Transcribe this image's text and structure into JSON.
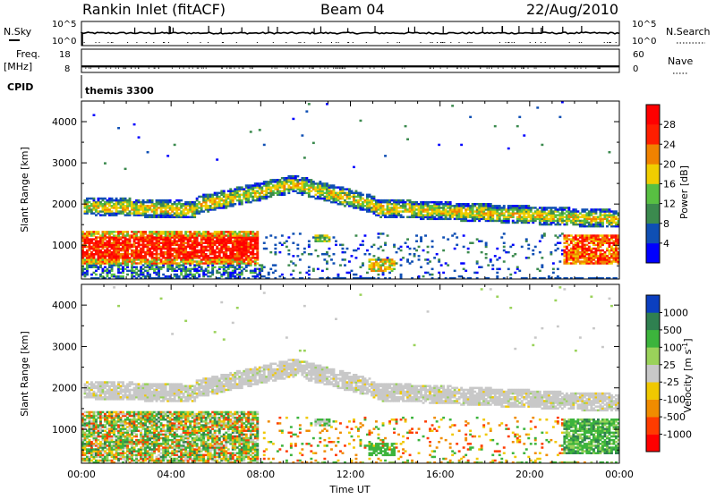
{
  "header": {
    "station": "Rankin Inlet (fitACF)",
    "beam": "Beam 04",
    "date": "22/Aug/2010"
  },
  "side_labels": {
    "nsky": "N.Sky",
    "freq": "Freq.",
    "mhz": "[MHz]",
    "cpid": "CPID",
    "nsearch": "N.Search",
    "nave": "Nave"
  },
  "cpid_value": "themis 3300",
  "chart_data": [
    {
      "type": "line",
      "panel": "noise",
      "left_ticks": [
        "10^5",
        "10^0"
      ],
      "right_ticks": [
        "10^5",
        "10^0"
      ],
      "series": [
        {
          "name": "N.Sky",
          "baseline_log10": 2.6
        },
        {
          "name": "N.Search",
          "baseline_log10": 0.5
        }
      ]
    },
    {
      "type": "line",
      "panel": "frequency",
      "ylim_left": [
        8,
        18
      ],
      "left_ticks": [
        "18",
        "8"
      ],
      "ylim_right": [
        0,
        60
      ],
      "right_ticks": [
        "60",
        "0"
      ],
      "series": [
        {
          "name": "Freq.",
          "value": 10.6
        },
        {
          "name": "Nave",
          "value": 10
        }
      ]
    },
    {
      "type": "heatmap",
      "panel": "power",
      "xlabel": "",
      "ylabel": "Slant Range [km]",
      "xlim": [
        0,
        24
      ],
      "ylim": [
        180,
        4500
      ],
      "y_ticks": [
        1000,
        2000,
        3000,
        4000
      ],
      "x_ticks_hours": [
        0,
        4,
        8,
        12,
        16,
        20,
        24
      ],
      "colorbar": {
        "label": "Power [dB]",
        "ticks": [
          "4",
          "8",
          "12",
          "16",
          "20",
          "24",
          "28"
        ],
        "colors": [
          "#0000ff",
          "#0f4fb4",
          "#3b8a4e",
          "#58c042",
          "#f0ce00",
          "#f08200",
          "#ff1e00",
          "#ff0000"
        ]
      }
    },
    {
      "type": "heatmap",
      "panel": "velocity",
      "xlabel": "Time UT",
      "ylabel": "Slant Range [km]",
      "xlim": [
        0,
        24
      ],
      "ylim": [
        180,
        4500
      ],
      "y_ticks": [
        1000,
        2000,
        3000,
        4000
      ],
      "x_tick_labels": [
        "00:00",
        "04:00",
        "08:00",
        "12:00",
        "16:00",
        "20:00",
        "00:00"
      ],
      "colorbar": {
        "label": "Velocity [m s",
        "label_sup": "-1",
        "label_end": "]",
        "ticks": [
          "1000",
          "500",
          "100",
          "25",
          "-25",
          "-100",
          "-500",
          "-1000"
        ],
        "colors": [
          "#0b3fc0",
          "#2f8050",
          "#3cb43c",
          "#9ad25a",
          "#c8c8c8",
          "#f0c800",
          "#f08c00",
          "#ff3c00",
          "#ff0000"
        ]
      }
    }
  ]
}
